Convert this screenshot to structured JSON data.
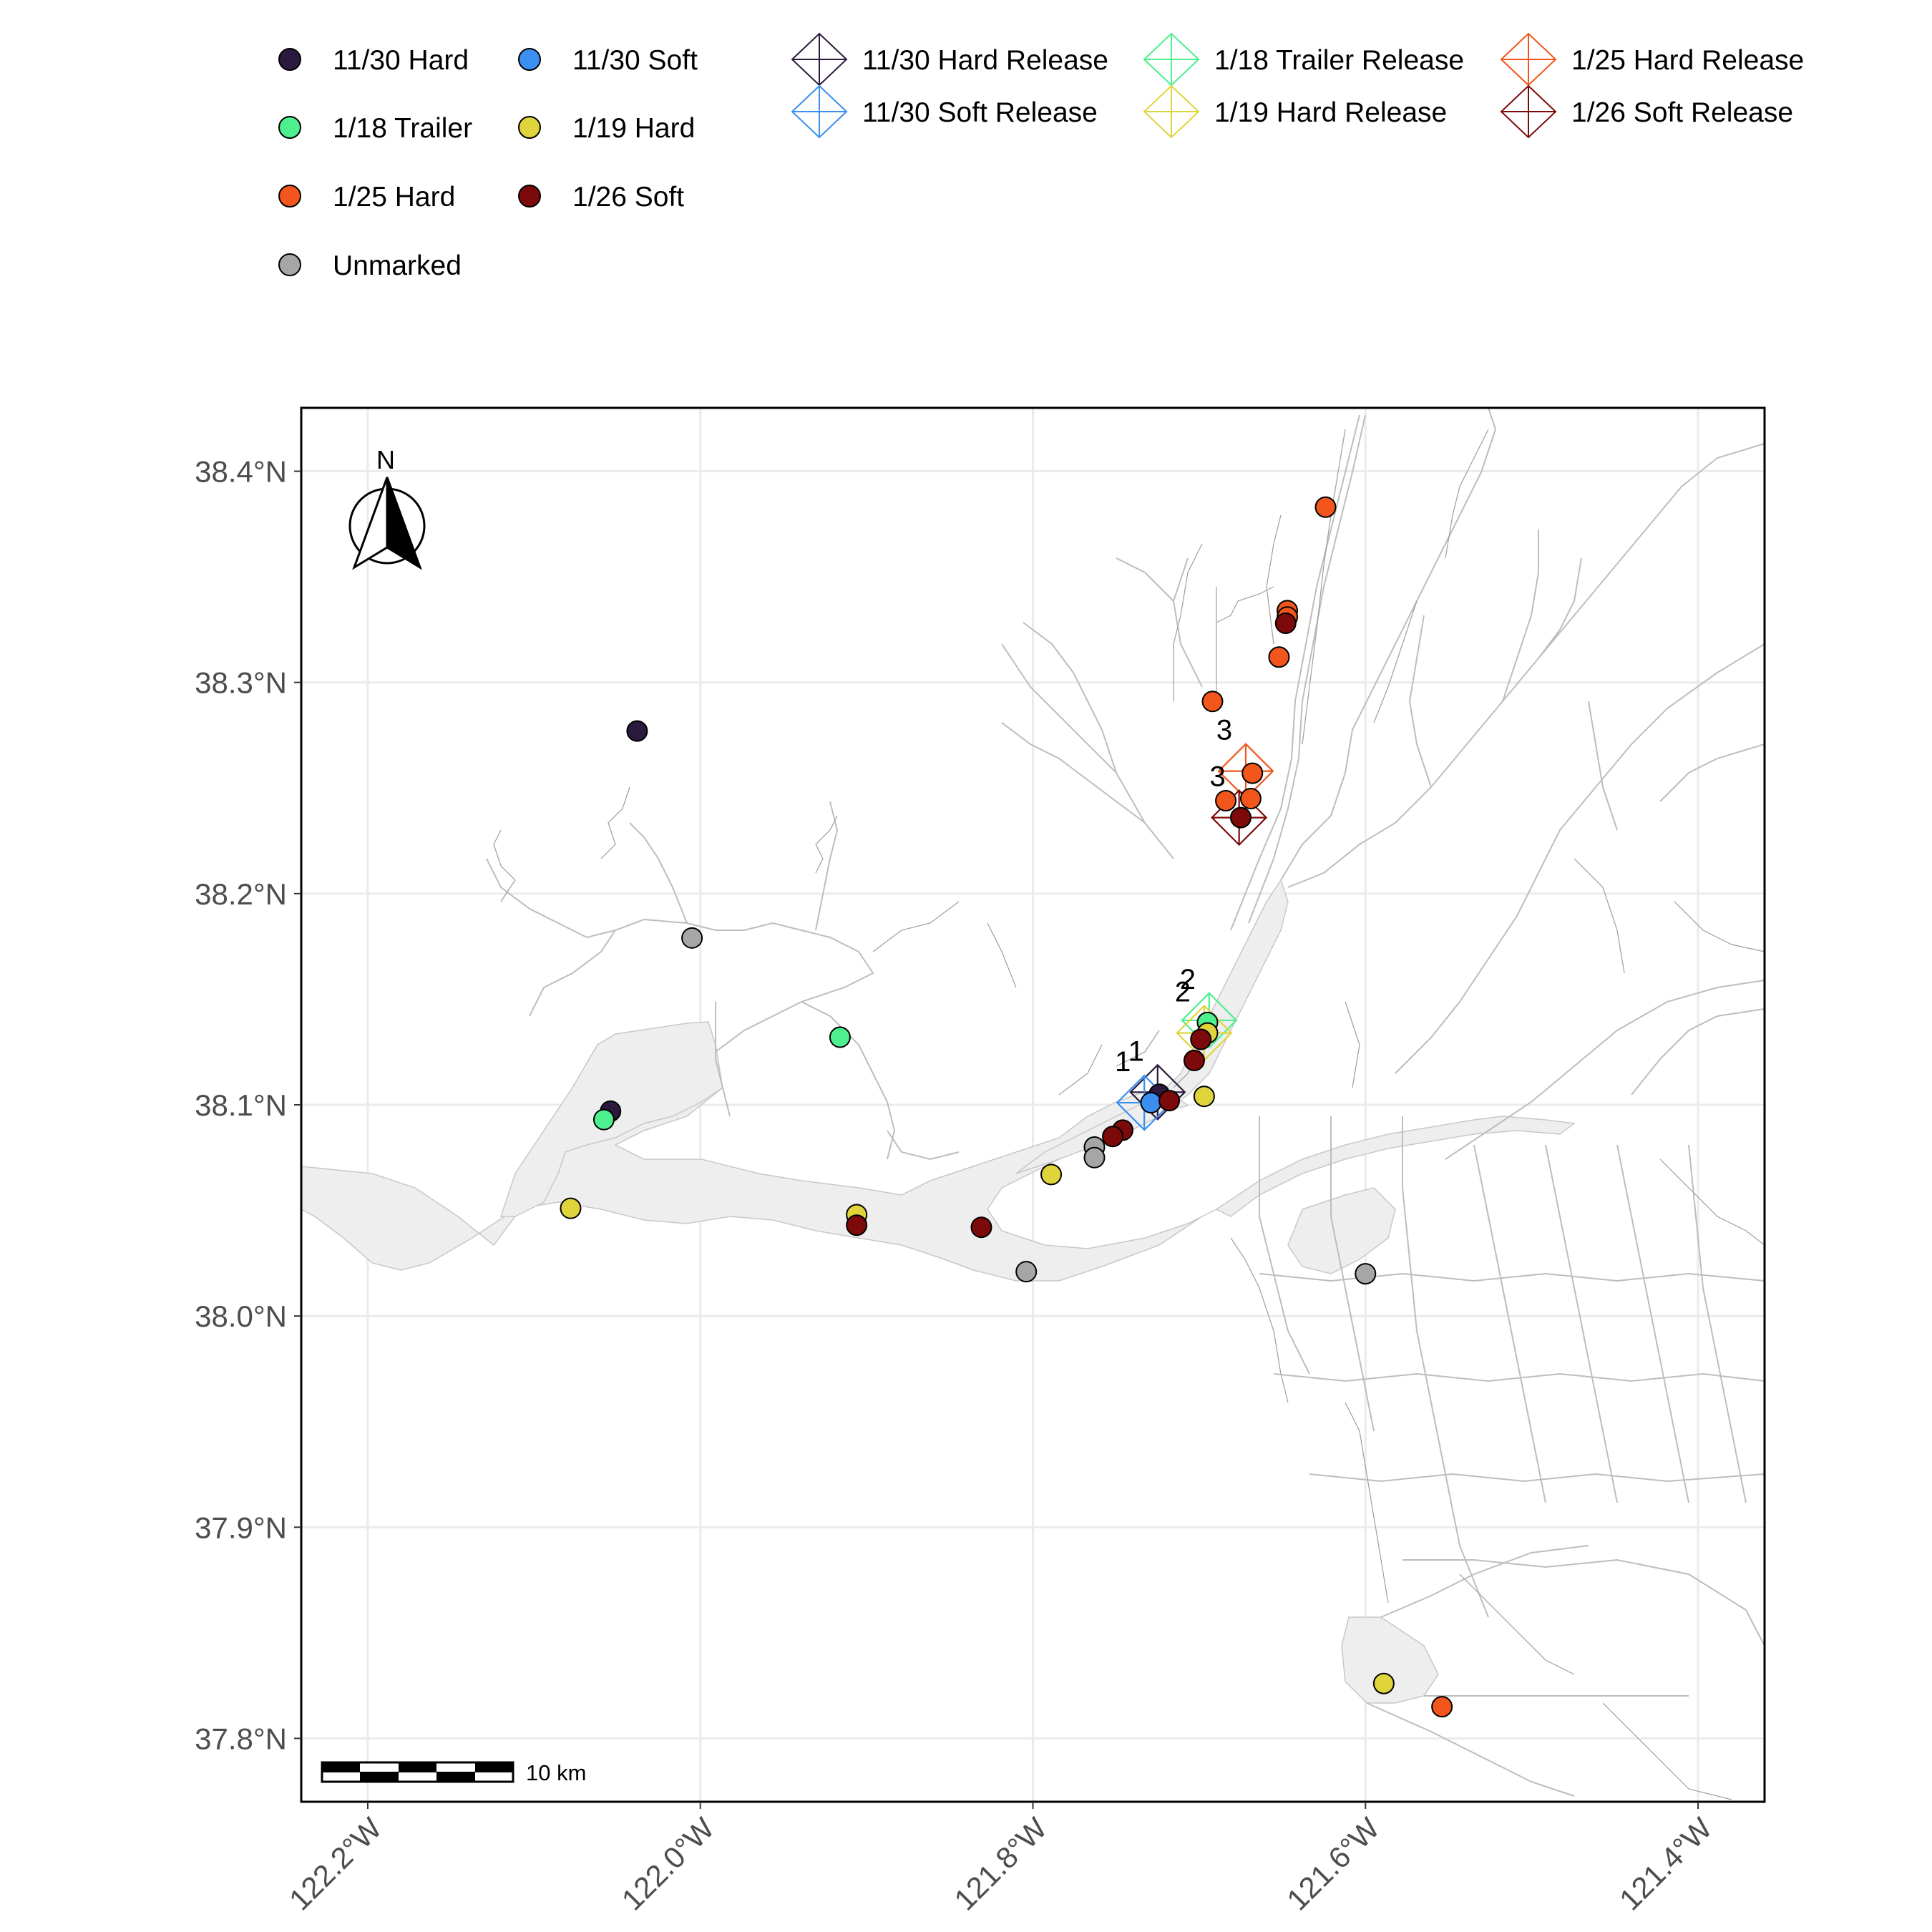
{
  "map": {
    "north_label": "N",
    "scale_label": "10 km",
    "y_ticks": [
      {
        "value": 38.4,
        "label": "38.4°N"
      },
      {
        "value": 38.3,
        "label": "38.3°N"
      },
      {
        "value": 38.2,
        "label": "38.2°N"
      },
      {
        "value": 38.1,
        "label": "38.1°N"
      },
      {
        "value": 38.0,
        "label": "38.0°N"
      },
      {
        "value": 37.9,
        "label": "37.9°N"
      },
      {
        "value": 37.8,
        "label": "37.8°N"
      }
    ],
    "x_ticks": [
      {
        "value": -122.2,
        "label": "122.2°W"
      },
      {
        "value": -122.0,
        "label": "122.0°W"
      },
      {
        "value": -121.8,
        "label": "121.8°W"
      },
      {
        "value": -121.6,
        "label": "121.6°W"
      },
      {
        "value": -121.4,
        "label": "121.4°W"
      }
    ],
    "lon_range": [
      -122.24,
      -121.36
    ],
    "lat_range": [
      37.77,
      38.43
    ],
    "grid": true
  },
  "legend": {
    "point_groups": [
      {
        "label": "11/30 Hard",
        "color": "#2b1a3d"
      },
      {
        "label": "11/30 Soft",
        "color": "#3a8ff0"
      },
      {
        "label": "1/18 Trailer",
        "color": "#4def8e"
      },
      {
        "label": "1/19 Hard",
        "color": "#e0d43c"
      },
      {
        "label": "1/25 Hard",
        "color": "#f2561c"
      },
      {
        "label": "1/26 Soft",
        "color": "#7d0a0a"
      },
      {
        "label": "Unmarked",
        "color": "#a6a6a6"
      }
    ],
    "release_groups": [
      {
        "label": "11/30 Hard Release",
        "color": "#2b1a3d"
      },
      {
        "label": "11/30 Soft Release",
        "color": "#3a8ff0"
      },
      {
        "label": "1/18 Trailer Release",
        "color": "#4def8e"
      },
      {
        "label": "1/19 Hard Release",
        "color": "#e0d43c"
      },
      {
        "label": "1/25 Hard Release",
        "color": "#f2561c"
      },
      {
        "label": "1/26 Soft Release",
        "color": "#7d0a0a"
      }
    ]
  },
  "releases": [
    {
      "group": "11/30 Hard Release",
      "lon": -121.725,
      "lat": 38.106,
      "label": "1",
      "color": "#2b1a3d"
    },
    {
      "group": "11/30 Soft Release",
      "lon": -121.733,
      "lat": 38.101,
      "label": "1",
      "color": "#3a8ff0"
    },
    {
      "group": "1/18 Trailer Release",
      "lon": -121.694,
      "lat": 38.14,
      "label": "2",
      "color": "#4def8e"
    },
    {
      "group": "1/19 Hard Release",
      "lon": -121.697,
      "lat": 38.134,
      "label": "2",
      "color": "#e0d43c"
    },
    {
      "group": "1/25 Hard Release",
      "lon": -121.672,
      "lat": 38.258,
      "label": "3",
      "color": "#f2561c"
    },
    {
      "group": "1/26 Soft Release",
      "lon": -121.676,
      "lat": 38.236,
      "label": "3",
      "color": "#7d0a0a"
    }
  ],
  "detections": [
    {
      "group": "11/30 Hard",
      "lon": -122.038,
      "lat": 38.277
    },
    {
      "group": "11/30 Hard",
      "lon": -122.054,
      "lat": 38.097
    },
    {
      "group": "11/30 Hard",
      "lon": -121.724,
      "lat": 38.105
    },
    {
      "group": "11/30 Soft",
      "lon": -121.729,
      "lat": 38.101
    },
    {
      "group": "1/18 Trailer",
      "lon": -122.058,
      "lat": 38.093
    },
    {
      "group": "1/18 Trailer",
      "lon": -121.916,
      "lat": 38.132
    },
    {
      "group": "1/18 Trailer",
      "lon": -121.695,
      "lat": 38.139
    },
    {
      "group": "1/19 Hard",
      "lon": -122.078,
      "lat": 38.051
    },
    {
      "group": "1/19 Hard",
      "lon": -121.906,
      "lat": 38.048
    },
    {
      "group": "1/19 Hard",
      "lon": -121.789,
      "lat": 38.067
    },
    {
      "group": "1/19 Hard",
      "lon": -121.697,
      "lat": 38.104
    },
    {
      "group": "1/19 Hard",
      "lon": -121.695,
      "lat": 38.134
    },
    {
      "group": "1/19 Hard",
      "lon": -121.589,
      "lat": 37.826
    },
    {
      "group": "1/25 Hard",
      "lon": -121.624,
      "lat": 38.383
    },
    {
      "group": "1/25 Hard",
      "lon": -121.647,
      "lat": 38.334
    },
    {
      "group": "1/25 Hard",
      "lon": -121.647,
      "lat": 38.331
    },
    {
      "group": "1/25 Hard",
      "lon": -121.652,
      "lat": 38.312
    },
    {
      "group": "1/25 Hard",
      "lon": -121.692,
      "lat": 38.291
    },
    {
      "group": "1/25 Hard",
      "lon": -121.668,
      "lat": 38.257
    },
    {
      "group": "1/25 Hard",
      "lon": -121.669,
      "lat": 38.245
    },
    {
      "group": "1/25 Hard",
      "lon": -121.684,
      "lat": 38.244
    },
    {
      "group": "1/25 Hard",
      "lon": -121.554,
      "lat": 37.815
    },
    {
      "group": "1/26 Soft",
      "lon": -121.648,
      "lat": 38.328
    },
    {
      "group": "1/26 Soft",
      "lon": -121.675,
      "lat": 38.236
    },
    {
      "group": "1/26 Soft",
      "lon": -121.699,
      "lat": 38.131
    },
    {
      "group": "1/26 Soft",
      "lon": -121.703,
      "lat": 38.121
    },
    {
      "group": "1/26 Soft",
      "lon": -121.718,
      "lat": 38.102
    },
    {
      "group": "1/26 Soft",
      "lon": -121.746,
      "lat": 38.088
    },
    {
      "group": "1/26 Soft",
      "lon": -121.752,
      "lat": 38.085
    },
    {
      "group": "1/26 Soft",
      "lon": -121.831,
      "lat": 38.042
    },
    {
      "group": "1/26 Soft",
      "lon": -121.906,
      "lat": 38.043
    },
    {
      "group": "Unmarked",
      "lon": -122.005,
      "lat": 38.179
    },
    {
      "group": "Unmarked",
      "lon": -121.763,
      "lat": 38.08
    },
    {
      "group": "Unmarked",
      "lon": -121.763,
      "lat": 38.075
    },
    {
      "group": "Unmarked",
      "lon": -121.804,
      "lat": 38.021
    },
    {
      "group": "Unmarked",
      "lon": -121.6,
      "lat": 38.02
    }
  ]
}
